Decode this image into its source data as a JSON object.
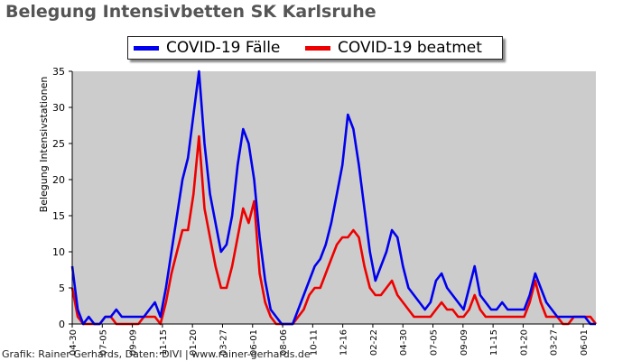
{
  "title": "Belegung Intensivbetten SK Karlsruhe",
  "credit": "Grafik: Rainer Gerhards, Daten: DIVI | www.rainer-gerhards.de",
  "chart_data": {
    "type": "line",
    "ylabel": "Belegung Intensivstationen",
    "ylim": [
      0,
      35
    ],
    "yticks": [
      0,
      5,
      10,
      15,
      20,
      25,
      30,
      35
    ],
    "xticks": [
      "04-30",
      "07-05",
      "09-09",
      "11-15",
      "01-20",
      "03-27",
      "06-01",
      "08-06",
      "10-11",
      "12-16",
      "02-22",
      "04-30",
      "07-05",
      "09-09",
      "11-15",
      "01-20",
      "03-27",
      "06-01"
    ],
    "legend_position": "top-center",
    "grid": false,
    "background": "#cccccc",
    "series": [
      {
        "name": "COVID-19 Fälle",
        "color": "#0000ee",
        "points": [
          [
            0,
            8
          ],
          [
            1,
            2
          ],
          [
            2,
            0
          ],
          [
            3,
            1
          ],
          [
            4,
            0
          ],
          [
            5,
            0
          ],
          [
            6,
            1
          ],
          [
            7,
            1
          ],
          [
            8,
            2
          ],
          [
            9,
            1
          ],
          [
            10,
            1
          ],
          [
            11,
            1
          ],
          [
            12,
            1
          ],
          [
            13,
            1
          ],
          [
            14,
            2
          ],
          [
            15,
            3
          ],
          [
            16,
            1
          ],
          [
            17,
            5
          ],
          [
            18,
            10
          ],
          [
            19,
            15
          ],
          [
            20,
            20
          ],
          [
            21,
            23
          ],
          [
            22,
            29
          ],
          [
            23,
            35
          ],
          [
            24,
            25
          ],
          [
            25,
            18
          ],
          [
            26,
            14
          ],
          [
            27,
            10
          ],
          [
            28,
            11
          ],
          [
            29,
            15
          ],
          [
            30,
            22
          ],
          [
            31,
            27
          ],
          [
            32,
            25
          ],
          [
            33,
            20
          ],
          [
            34,
            12
          ],
          [
            35,
            6
          ],
          [
            36,
            2
          ],
          [
            37,
            1
          ],
          [
            38,
            0
          ],
          [
            39,
            0
          ],
          [
            40,
            0
          ],
          [
            41,
            2
          ],
          [
            42,
            4
          ],
          [
            43,
            6
          ],
          [
            44,
            8
          ],
          [
            45,
            9
          ],
          [
            46,
            11
          ],
          [
            47,
            14
          ],
          [
            48,
            18
          ],
          [
            49,
            22
          ],
          [
            50,
            29
          ],
          [
            51,
            27
          ],
          [
            52,
            22
          ],
          [
            53,
            16
          ],
          [
            54,
            10
          ],
          [
            55,
            6
          ],
          [
            56,
            8
          ],
          [
            57,
            10
          ],
          [
            58,
            13
          ],
          [
            59,
            12
          ],
          [
            60,
            8
          ],
          [
            61,
            5
          ],
          [
            62,
            4
          ],
          [
            63,
            3
          ],
          [
            64,
            2
          ],
          [
            65,
            3
          ],
          [
            66,
            6
          ],
          [
            67,
            7
          ],
          [
            68,
            5
          ],
          [
            69,
            4
          ],
          [
            70,
            3
          ],
          [
            71,
            2
          ],
          [
            72,
            5
          ],
          [
            73,
            8
          ],
          [
            74,
            4
          ],
          [
            75,
            3
          ],
          [
            76,
            2
          ],
          [
            77,
            2
          ],
          [
            78,
            3
          ],
          [
            79,
            2
          ],
          [
            80,
            2
          ],
          [
            81,
            2
          ],
          [
            82,
            2
          ],
          [
            83,
            4
          ],
          [
            84,
            7
          ],
          [
            85,
            5
          ],
          [
            86,
            3
          ],
          [
            87,
            2
          ],
          [
            88,
            1
          ],
          [
            89,
            1
          ],
          [
            90,
            1
          ],
          [
            91,
            1
          ],
          [
            92,
            1
          ],
          [
            93,
            1
          ],
          [
            94,
            0
          ],
          [
            95,
            0
          ]
        ]
      },
      {
        "name": "COVID-19 beatmet",
        "color": "#ee0000",
        "points": [
          [
            0,
            5
          ],
          [
            1,
            1
          ],
          [
            2,
            0
          ],
          [
            3,
            0
          ],
          [
            4,
            0
          ],
          [
            5,
            0
          ],
          [
            6,
            1
          ],
          [
            7,
            1
          ],
          [
            8,
            0
          ],
          [
            9,
            0
          ],
          [
            10,
            0
          ],
          [
            11,
            0
          ],
          [
            12,
            0
          ],
          [
            13,
            1
          ],
          [
            14,
            1
          ],
          [
            15,
            1
          ],
          [
            16,
            0
          ],
          [
            17,
            3
          ],
          [
            18,
            7
          ],
          [
            19,
            10
          ],
          [
            20,
            13
          ],
          [
            21,
            13
          ],
          [
            22,
            18
          ],
          [
            23,
            26
          ],
          [
            24,
            16
          ],
          [
            25,
            12
          ],
          [
            26,
            8
          ],
          [
            27,
            5
          ],
          [
            28,
            5
          ],
          [
            29,
            8
          ],
          [
            30,
            12
          ],
          [
            31,
            16
          ],
          [
            32,
            14
          ],
          [
            33,
            17
          ],
          [
            34,
            7
          ],
          [
            35,
            3
          ],
          [
            36,
            1
          ],
          [
            37,
            0
          ],
          [
            38,
            0
          ],
          [
            39,
            0
          ],
          [
            40,
            0
          ],
          [
            41,
            1
          ],
          [
            42,
            2
          ],
          [
            43,
            4
          ],
          [
            44,
            5
          ],
          [
            45,
            5
          ],
          [
            46,
            7
          ],
          [
            47,
            9
          ],
          [
            48,
            11
          ],
          [
            49,
            12
          ],
          [
            50,
            12
          ],
          [
            51,
            13
          ],
          [
            52,
            12
          ],
          [
            53,
            8
          ],
          [
            54,
            5
          ],
          [
            55,
            4
          ],
          [
            56,
            4
          ],
          [
            57,
            5
          ],
          [
            58,
            6
          ],
          [
            59,
            4
          ],
          [
            60,
            3
          ],
          [
            61,
            2
          ],
          [
            62,
            1
          ],
          [
            63,
            1
          ],
          [
            64,
            1
          ],
          [
            65,
            1
          ],
          [
            66,
            2
          ],
          [
            67,
            3
          ],
          [
            68,
            2
          ],
          [
            69,
            2
          ],
          [
            70,
            1
          ],
          [
            71,
            1
          ],
          [
            72,
            2
          ],
          [
            73,
            4
          ],
          [
            74,
            2
          ],
          [
            75,
            1
          ],
          [
            76,
            1
          ],
          [
            77,
            1
          ],
          [
            78,
            1
          ],
          [
            79,
            1
          ],
          [
            80,
            1
          ],
          [
            81,
            1
          ],
          [
            82,
            1
          ],
          [
            83,
            3
          ],
          [
            84,
            6
          ],
          [
            85,
            3
          ],
          [
            86,
            1
          ],
          [
            87,
            1
          ],
          [
            88,
            1
          ],
          [
            89,
            0
          ],
          [
            90,
            0
          ],
          [
            91,
            1
          ],
          [
            92,
            1
          ],
          [
            93,
            1
          ],
          [
            94,
            1
          ],
          [
            95,
            0
          ]
        ]
      }
    ]
  }
}
